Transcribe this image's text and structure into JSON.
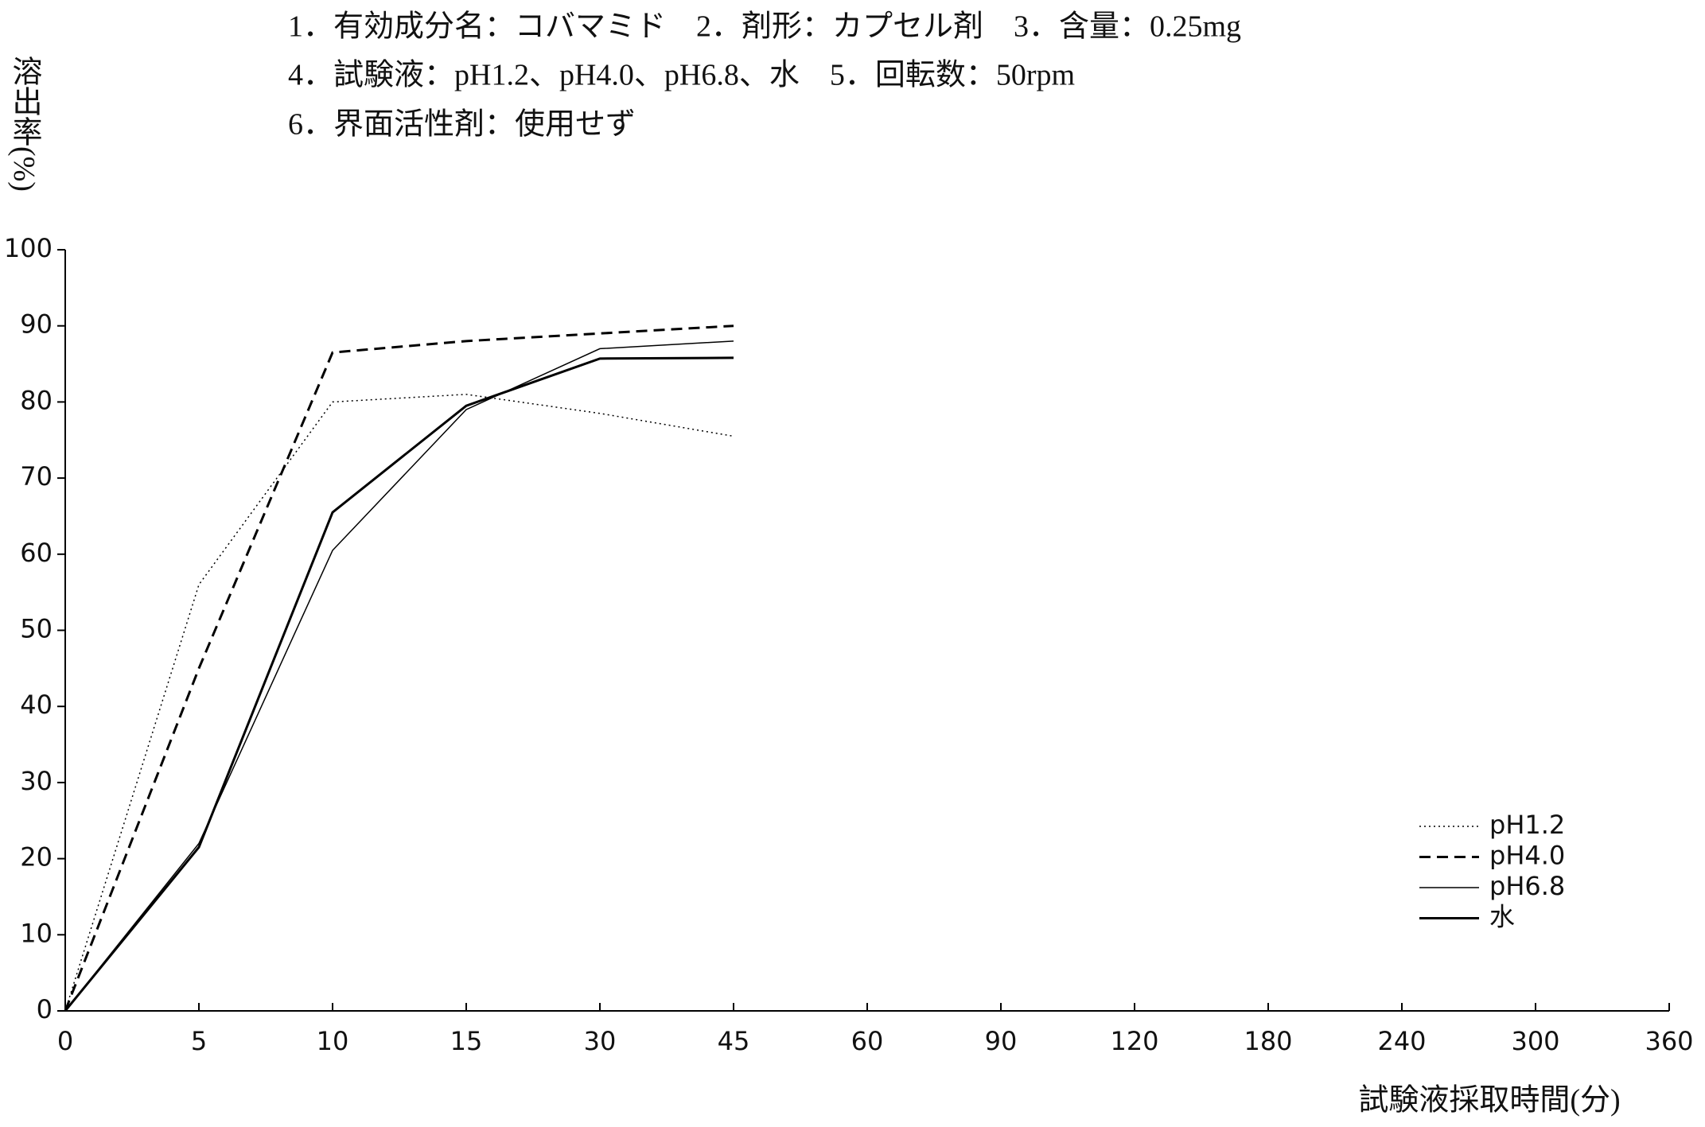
{
  "chart_data": {
    "type": "line",
    "title_lines": [
      "1．有効成分名：コバマミド　2．剤形：カプセル剤　3．含量：0.25mg",
      "4．試験液：pH1.2、pH4.0、pH6.8、水　5．回転数：50rpm",
      "6．界面活性剤：使用せず"
    ],
    "ylabel": "溶出率(%)",
    "xlabel": "試験液採取時間(分)",
    "categories": [
      0,
      5,
      10,
      15,
      30,
      45,
      60,
      90,
      120,
      180,
      240,
      300,
      360
    ],
    "ylim": [
      0,
      100
    ],
    "yticks": [
      0,
      10,
      20,
      30,
      40,
      50,
      60,
      70,
      80,
      90,
      100
    ],
    "legend": "lower right",
    "series": [
      {
        "name": "pH1.2",
        "color": "#000000",
        "style": "dotted",
        "values": [
          0,
          56,
          80,
          81,
          78.5,
          75.5,
          null,
          null,
          null,
          null,
          null,
          null,
          null
        ]
      },
      {
        "name": "pH4.0",
        "color": "#000000",
        "style": "dashed",
        "values": [
          0,
          45,
          86.5,
          88,
          89,
          90,
          null,
          null,
          null,
          null,
          null,
          null,
          null
        ]
      },
      {
        "name": "pH6.8",
        "color": "#000000",
        "style": "thin",
        "values": [
          0,
          22,
          60.5,
          79,
          87,
          88,
          null,
          null,
          null,
          null,
          null,
          null,
          null
        ]
      },
      {
        "name": "水",
        "color": "#000000",
        "style": "solid",
        "values": [
          0,
          21.5,
          65.5,
          79.5,
          85.7,
          85.8,
          null,
          null,
          null,
          null,
          null,
          null,
          null
        ]
      }
    ]
  }
}
